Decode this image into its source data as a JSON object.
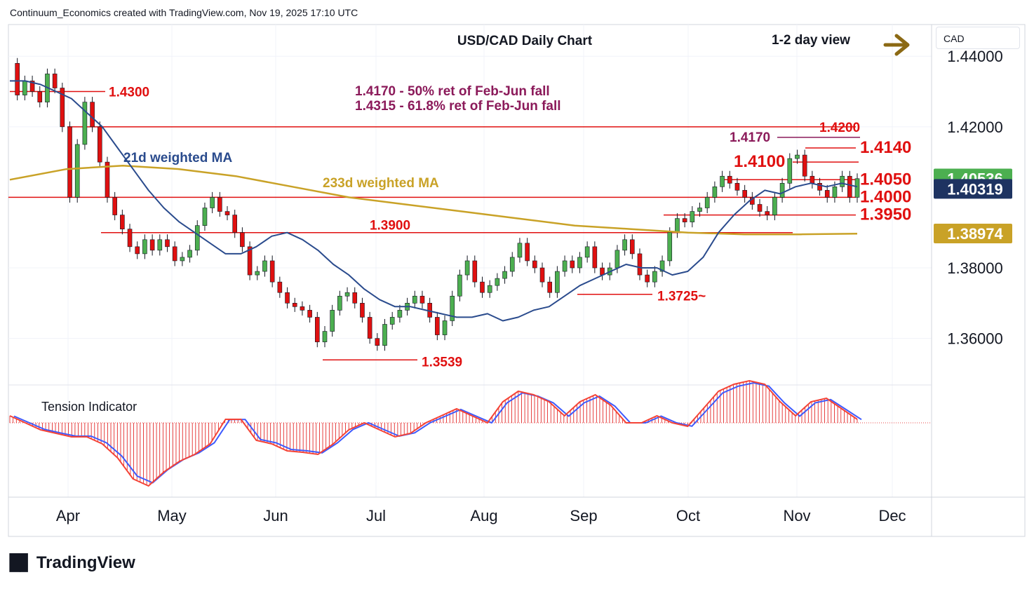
{
  "header": "Continuum_Economics created with TradingView.com, Nov 19, 2025 17:10 UTC",
  "currency": "CAD",
  "brand": "TradingView",
  "chart_data": {
    "type": "candlestick",
    "title": "USD/CAD Daily Chart",
    "subtitle": "1-2 day view",
    "xlabel": "",
    "ylabel": "",
    "ylim": [
      1.347,
      1.448
    ],
    "grid": true,
    "y_ticks": [
      "1.44000",
      "1.42000",
      "1.38000",
      "1.36000"
    ],
    "x_ticks": [
      "Apr",
      "May",
      "Jun",
      "Jul",
      "Aug",
      "Sep",
      "Oct",
      "Nov",
      "Dec"
    ],
    "notes": [
      "1.4170 - 50% ret of Feb-Jun fall",
      "1.4315 - 61.8% ret of Feb-Jun fall"
    ],
    "ma_labels": [
      {
        "text": "21d weighted MA",
        "color": "#2a4b8d"
      },
      {
        "text": "233d weighted MA",
        "color": "#c9a227"
      }
    ],
    "level_labels": [
      {
        "text": "1.4300",
        "value": 1.43
      },
      {
        "text": "1.4200",
        "value": 1.42
      },
      {
        "text": "1.4170",
        "value": 1.417
      },
      {
        "text": "1.4140",
        "value": 1.414
      },
      {
        "text": "1.4100",
        "value": 1.41
      },
      {
        "text": "1.4050",
        "value": 1.405
      },
      {
        "text": "1.4000",
        "value": 1.4
      },
      {
        "text": "1.3950",
        "value": 1.395
      },
      {
        "text": "1.3900",
        "value": 1.39
      },
      {
        "text": "1.3725~",
        "value": 1.3725
      },
      {
        "text": "1.3539",
        "value": 1.3539
      }
    ],
    "price_badges": [
      {
        "text": "1.40536",
        "value": 1.40536,
        "color": "#4caf50"
      },
      {
        "text": "1.40319",
        "value": 1.40319,
        "color": "#1e3361"
      },
      {
        "text": "1.38974",
        "value": 1.38974,
        "color": "#c9a227"
      }
    ],
    "close_path": [
      1.438,
      1.429,
      1.433,
      1.43,
      1.427,
      1.435,
      1.431,
      1.42,
      1.4,
      1.415,
      1.427,
      1.42,
      1.41,
      1.4,
      1.395,
      1.391,
      1.386,
      1.384,
      1.388,
      1.385,
      1.388,
      1.386,
      1.382,
      1.383,
      1.385,
      1.392,
      1.397,
      1.4,
      1.396,
      1.395,
      1.39,
      1.386,
      1.378,
      1.379,
      1.382,
      1.376,
      1.373,
      1.37,
      1.369,
      1.368,
      1.366,
      1.359,
      1.362,
      1.368,
      1.372,
      1.373,
      1.37,
      1.366,
      1.36,
      1.358,
      1.364,
      1.366,
      1.368,
      1.37,
      1.372,
      1.37,
      1.366,
      1.361,
      1.365,
      1.372,
      1.378,
      1.382,
      1.376,
      1.373,
      1.375,
      1.377,
      1.379,
      1.383,
      1.387,
      1.382,
      1.38,
      1.376,
      1.373,
      1.379,
      1.382,
      1.38,
      1.383,
      1.386,
      1.38,
      1.378,
      1.38,
      1.385,
      1.388,
      1.384,
      1.378,
      1.376,
      1.379,
      1.382,
      1.39,
      1.394,
      1.393,
      1.396,
      1.397,
      1.4,
      1.403,
      1.406,
      1.404,
      1.402,
      1.4,
      1.398,
      1.396,
      1.395,
      1.4,
      1.404,
      1.411,
      1.412,
      1.406,
      1.404,
      1.402,
      1.4,
      1.403,
      1.406,
      1.4,
      1.4053
    ],
    "ma21_path": [
      1.433,
      1.433,
      1.432,
      1.43,
      1.428,
      1.424,
      1.42,
      1.414,
      1.408,
      1.402,
      1.397,
      1.393,
      1.39,
      1.387,
      1.384,
      1.384,
      1.386,
      1.389,
      1.39,
      1.388,
      1.385,
      1.381,
      1.378,
      1.374,
      1.371,
      1.369,
      1.369,
      1.368,
      1.367,
      1.366,
      1.366,
      1.367,
      1.365,
      1.366,
      1.368,
      1.369,
      1.372,
      1.375,
      1.377,
      1.379,
      1.381,
      1.38,
      1.38,
      1.378,
      1.379,
      1.383,
      1.39,
      1.395,
      1.399,
      1.402,
      1.401,
      1.403,
      1.404,
      1.403,
      1.404,
      1.403
    ],
    "ma233_path": [
      1.405,
      1.408,
      1.409,
      1.408,
      1.406,
      1.403,
      1.4,
      1.398,
      1.396,
      1.394,
      1.392,
      1.391,
      1.39,
      1.3895,
      1.3895,
      1.3897
    ],
    "tension": {
      "type": "oscillator",
      "label": "Tension Indicator",
      "values": [
        0.1,
        0,
        -0.1,
        -0.15,
        -0.2,
        -0.2,
        -0.3,
        -0.5,
        -0.8,
        -0.9,
        -0.7,
        -0.55,
        -0.45,
        -0.3,
        0.05,
        0.05,
        -0.25,
        -0.3,
        -0.4,
        -0.42,
        -0.45,
        -0.3,
        -0.1,
        0,
        -0.1,
        -0.2,
        -0.15,
        0,
        0.1,
        0.2,
        0.1,
        0,
        0.3,
        0.45,
        0.4,
        0.3,
        0.1,
        0.3,
        0.4,
        0.25,
        0,
        0,
        0.1,
        0,
        -0.05,
        0.2,
        0.45,
        0.55,
        0.6,
        0.55,
        0.3,
        0.1,
        0.3,
        0.35,
        0.2,
        0.05
      ]
    }
  }
}
